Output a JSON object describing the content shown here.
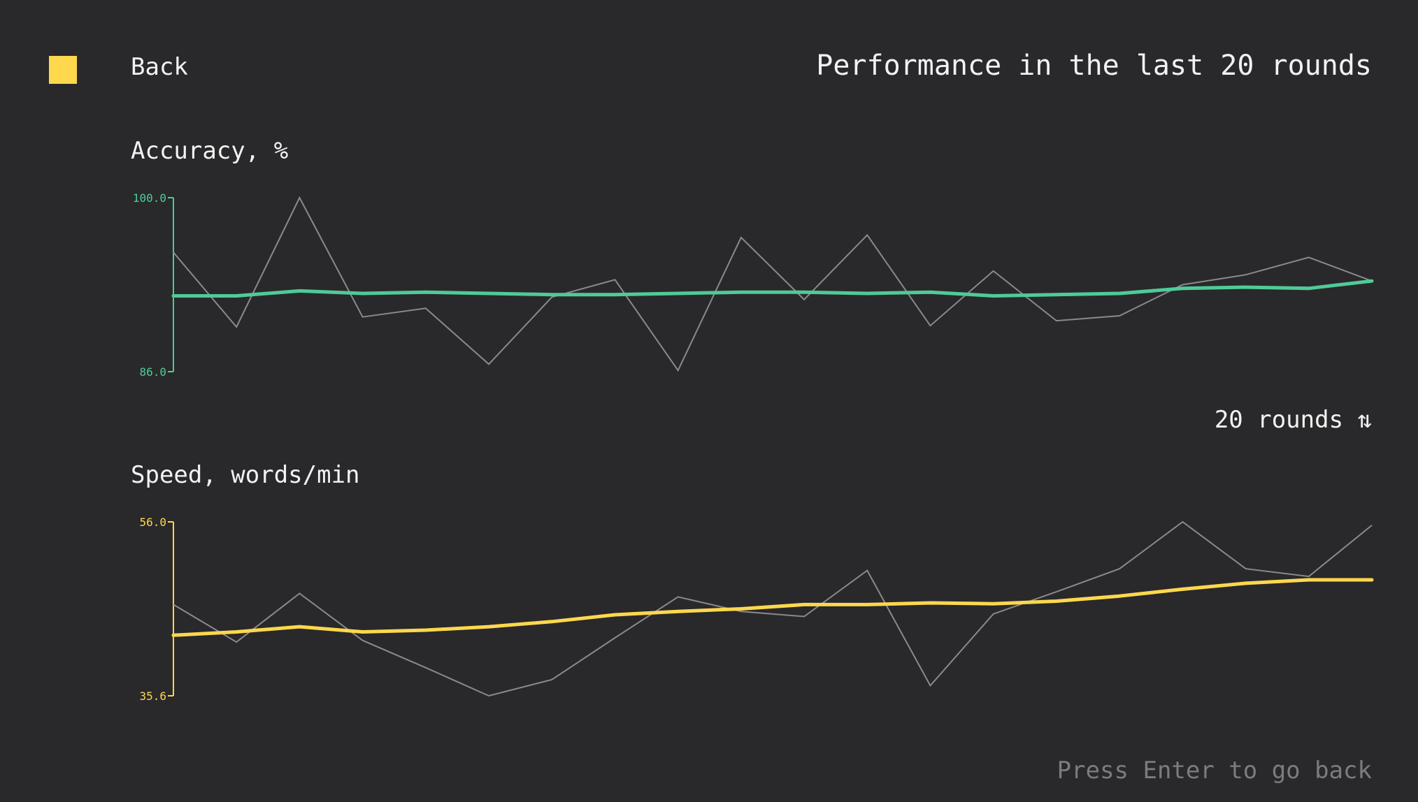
{
  "header": {
    "back_label": "Back",
    "title": "Performance in the last 20 rounds"
  },
  "controls": {
    "rounds_toggle": "20 rounds ⇅"
  },
  "footer": {
    "hint": "Press Enter to go back"
  },
  "colors": {
    "accent_yellow": "#ffd84d",
    "accuracy_green": "#4fcb98",
    "raw_gray": "#8a8a8d",
    "background": "#29292b"
  },
  "chart_data": [
    {
      "type": "line",
      "title": "Accuracy, %",
      "ylim": [
        86.0,
        100.0
      ],
      "y_tick_labels": [
        "100.0",
        "86.0"
      ],
      "x": [
        1,
        2,
        3,
        4,
        5,
        6,
        7,
        8,
        9,
        10,
        11,
        12,
        13,
        14,
        15,
        16,
        17,
        18,
        19,
        20
      ],
      "series": [
        {
          "role": "raw",
          "values": [
            95.6,
            89.6,
            100.0,
            90.4,
            91.1,
            86.6,
            92.0,
            93.4,
            86.1,
            96.8,
            91.8,
            97.0,
            89.7,
            94.1,
            90.1,
            90.5,
            93.0,
            93.8,
            95.2,
            93.3
          ]
        },
        {
          "role": "average",
          "values": [
            92.1,
            92.1,
            92.5,
            92.3,
            92.4,
            92.3,
            92.2,
            92.2,
            92.3,
            92.4,
            92.4,
            92.3,
            92.4,
            92.1,
            92.2,
            92.3,
            92.7,
            92.8,
            92.7,
            93.3
          ]
        }
      ]
    },
    {
      "type": "line",
      "title": "Speed, words/min",
      "ylim": [
        35.6,
        56.0
      ],
      "y_tick_labels": [
        "56.0",
        "35.6"
      ],
      "x": [
        1,
        2,
        3,
        4,
        5,
        6,
        7,
        8,
        9,
        10,
        11,
        12,
        13,
        14,
        15,
        16,
        17,
        18,
        19,
        20
      ],
      "series": [
        {
          "role": "raw",
          "values": [
            46.3,
            41.9,
            47.6,
            42.1,
            38.9,
            35.6,
            37.5,
            42.4,
            47.2,
            45.5,
            44.9,
            50.3,
            36.8,
            45.2,
            47.8,
            50.5,
            56.0,
            50.5,
            49.6,
            55.6
          ]
        },
        {
          "role": "average",
          "values": [
            42.7,
            43.1,
            43.7,
            43.1,
            43.3,
            43.7,
            44.3,
            45.1,
            45.5,
            45.8,
            46.3,
            46.3,
            46.5,
            46.4,
            46.7,
            47.3,
            48.1,
            48.8,
            49.2,
            49.2
          ]
        }
      ]
    }
  ]
}
